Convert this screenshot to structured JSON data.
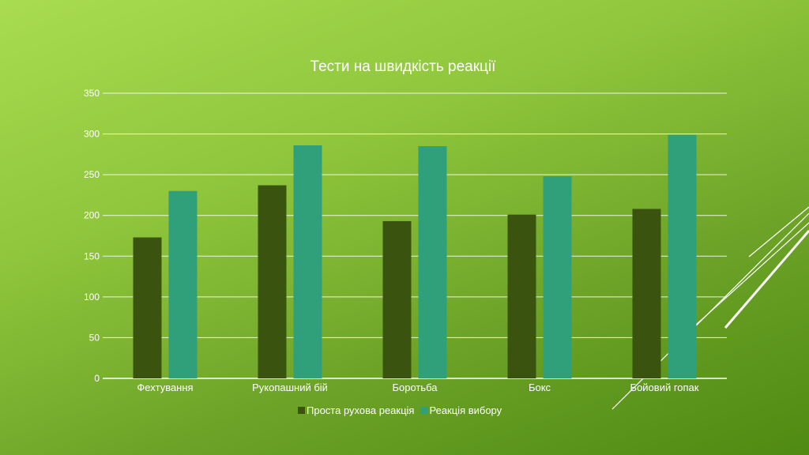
{
  "chart_data": {
    "type": "bar",
    "title": "Тести на швидкість реакції",
    "categories": [
      "Фехтування",
      "Рукопашний бій",
      "Боротьба",
      "Бокс",
      "Бойовий гопак"
    ],
    "series": [
      {
        "name": "Проста рухова реакція",
        "values": [
          173,
          237,
          193,
          201,
          208
        ],
        "color": "#3a5410"
      },
      {
        "name": "Реакція вибору",
        "values": [
          230,
          286,
          285,
          248,
          299
        ],
        "color": "#2fa07a"
      }
    ],
    "y_ticks": [
      "0",
      "50",
      "100",
      "150",
      "200",
      "250",
      "300",
      "350"
    ],
    "ylim": [
      0,
      350
    ],
    "grid": true,
    "legend": "bottom"
  }
}
